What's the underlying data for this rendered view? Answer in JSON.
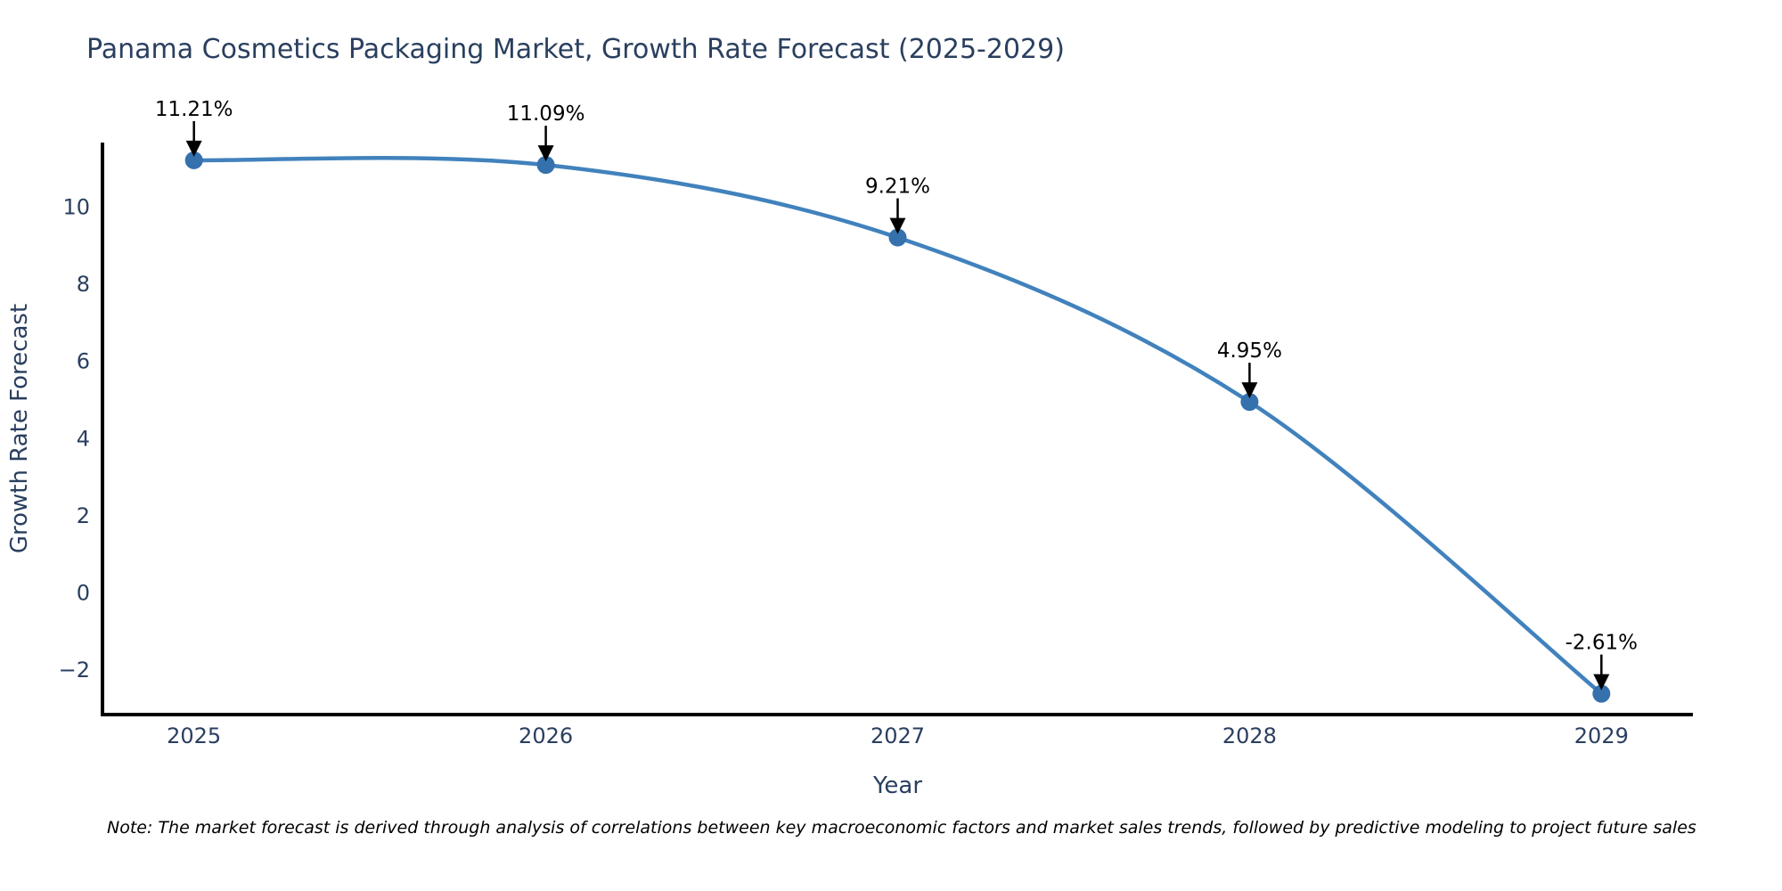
{
  "title": "Panama Cosmetics Packaging Market, Growth Rate Forecast (2025-2029)",
  "note": "Note: The market forecast is derived through analysis of correlations between key macroeconomic factors and market sales trends, followed by predictive modeling to project future sales",
  "colors": {
    "title_text": "#2a3f5f",
    "tick_text": "#2a3f5f",
    "annotation_text": "#000000",
    "axis_line": "#000000",
    "line": "#4182bd",
    "marker": "#3471ad",
    "background": "#ffffff"
  },
  "chart_data": {
    "type": "line",
    "line_shape": "spline",
    "title": "Panama Cosmetics Packaging Market, Growth Rate Forecast (2025-2029)",
    "xlabel": "Year",
    "ylabel": "Growth Rate Forecast",
    "x": [
      2025,
      2026,
      2027,
      2028,
      2029
    ],
    "series": [
      {
        "name": "Growth Rate Forecast",
        "values": [
          11.21,
          11.09,
          9.21,
          4.95,
          -2.61
        ],
        "labels": [
          "11.21%",
          "11.09%",
          "9.21%",
          "4.95%",
          "-2.61%"
        ]
      }
    ],
    "xticks": [
      2025,
      2026,
      2027,
      2028,
      2029
    ],
    "xtick_labels": [
      "2025",
      "2026",
      "2027",
      "2028",
      "2029"
    ],
    "yticks": [
      10,
      8,
      6,
      4,
      2,
      0,
      -2
    ],
    "ytick_labels": [
      "10",
      "8",
      "6",
      "4",
      "2",
      "0",
      "−2"
    ],
    "xlim": [
      2024.74,
      2029.26
    ],
    "ylim": [
      -3.15,
      11.67
    ],
    "grid": false,
    "legend": false,
    "markers": true,
    "annotations_arrows": true
  }
}
